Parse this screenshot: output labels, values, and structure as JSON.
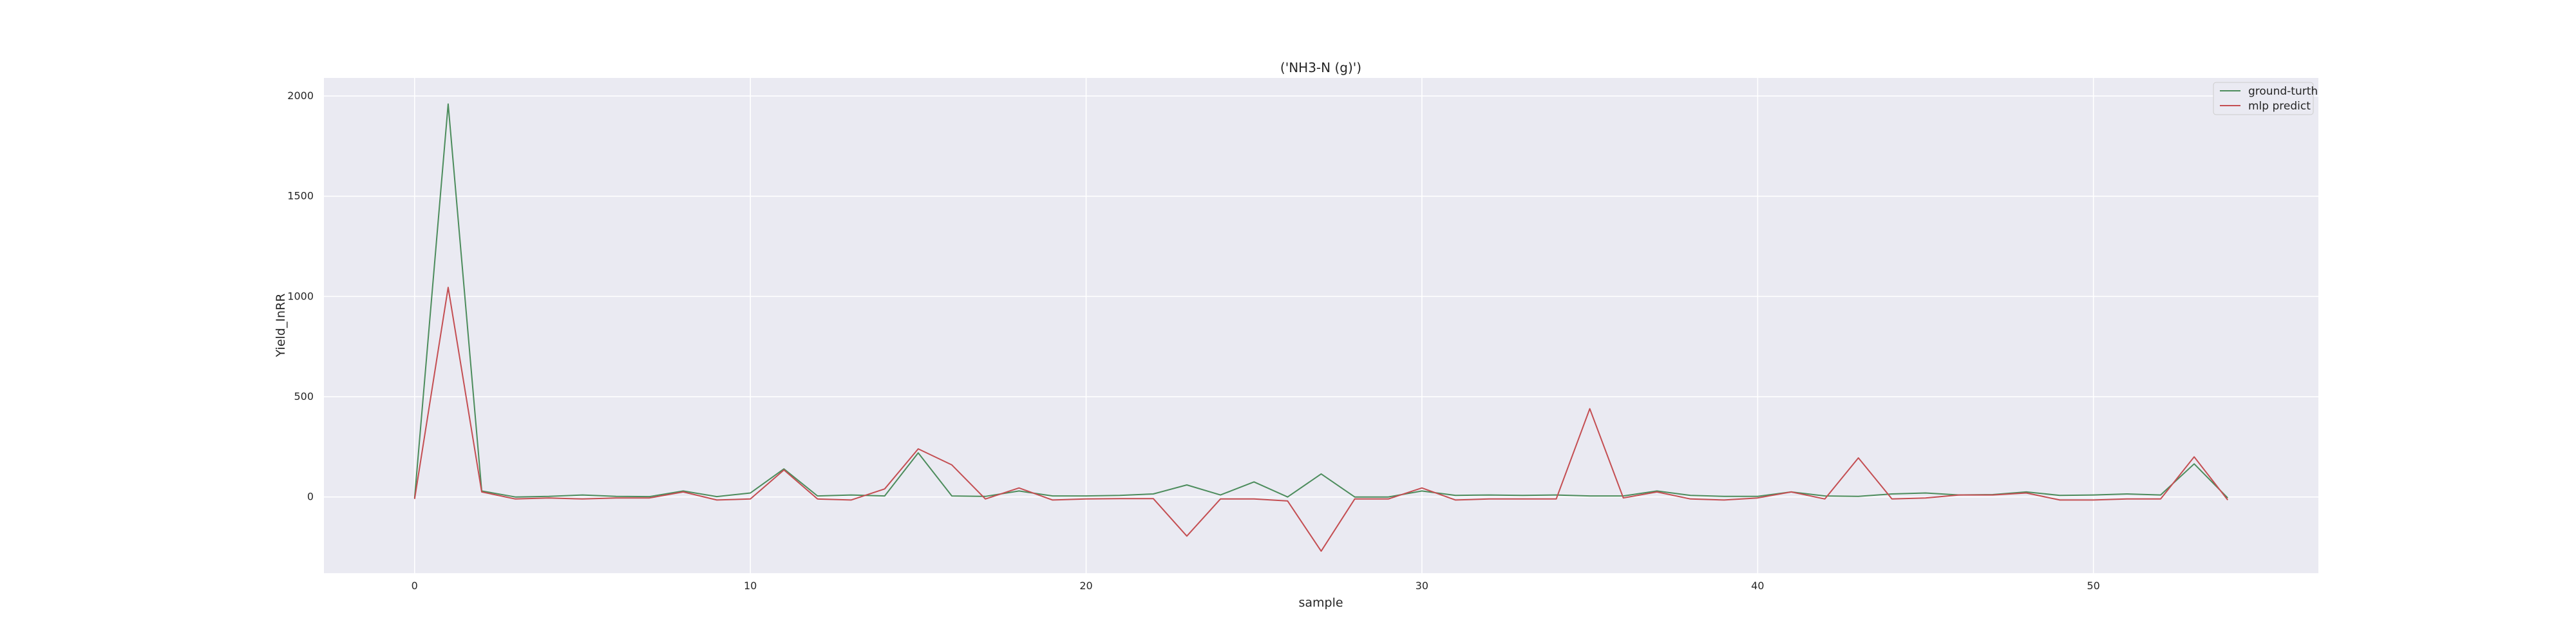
{
  "chart_data": {
    "type": "line",
    "title": "('NH3-N (g)')",
    "xlabel": "sample",
    "ylabel": "Yield_InRR",
    "xlim": [
      -2.7,
      56.7
    ],
    "ylim": [
      -380,
      2090
    ],
    "xticks": [
      0,
      10,
      20,
      30,
      40,
      50
    ],
    "yticks": [
      0,
      500,
      1000,
      1500,
      2000
    ],
    "grid": true,
    "legend_position": "upper right",
    "x": [
      0,
      1,
      2,
      3,
      4,
      5,
      6,
      7,
      8,
      9,
      10,
      11,
      12,
      13,
      14,
      15,
      16,
      17,
      18,
      19,
      20,
      21,
      22,
      23,
      24,
      25,
      26,
      27,
      28,
      29,
      30,
      31,
      32,
      33,
      34,
      35,
      36,
      37,
      38,
      39,
      40,
      41,
      42,
      43,
      44,
      45,
      46,
      47,
      48,
      49,
      50,
      51,
      52,
      53,
      54
    ],
    "series": [
      {
        "name": "ground-turth",
        "color": "#4c8c5c",
        "values": [
          -5,
          1960,
          30,
          0,
          3,
          10,
          3,
          2,
          30,
          2,
          20,
          140,
          5,
          10,
          5,
          220,
          5,
          3,
          30,
          5,
          5,
          8,
          15,
          60,
          10,
          75,
          0,
          115,
          0,
          0,
          30,
          8,
          10,
          8,
          10,
          5,
          5,
          30,
          8,
          3,
          3,
          25,
          5,
          3,
          15,
          20,
          10,
          12,
          25,
          8,
          10,
          15,
          10,
          165,
          -5
        ]
      },
      {
        "name": "mlp predict",
        "color": "#c44e52",
        "values": [
          -10,
          1045,
          25,
          -10,
          -5,
          -10,
          -5,
          -5,
          25,
          -15,
          -10,
          135,
          -10,
          -15,
          40,
          240,
          160,
          -10,
          45,
          -15,
          -10,
          -8,
          -8,
          -195,
          -10,
          -10,
          -20,
          -270,
          -10,
          -10,
          45,
          -15,
          -10,
          -10,
          -10,
          440,
          -5,
          25,
          -10,
          -15,
          -5,
          25,
          -10,
          195,
          -10,
          -5,
          10,
          10,
          20,
          -15,
          -15,
          -10,
          -10,
          200,
          -15
        ]
      }
    ]
  }
}
